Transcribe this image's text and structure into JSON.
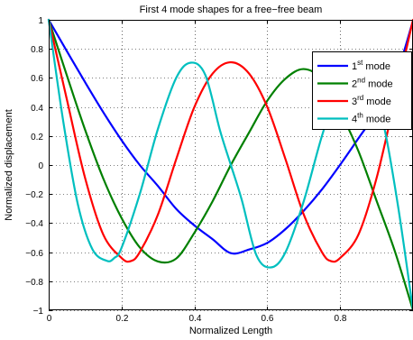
{
  "chart_data": {
    "type": "line",
    "title": "First 4 mode shapes for a free−free beam",
    "xlabel": "Normalized Length",
    "ylabel": "Normalized displacement",
    "xlim": [
      0,
      1
    ],
    "ylim": [
      -1,
      1
    ],
    "grid": true,
    "legend_position": "top-right",
    "x_ticks": [
      0,
      0.2,
      0.4,
      0.6,
      0.8
    ],
    "x_tick_labels": [
      "0",
      "0.2",
      "0.4",
      "0.6",
      "0.8"
    ],
    "y_ticks": [
      -1,
      -0.8,
      -0.6,
      -0.4,
      -0.2,
      0,
      0.2,
      0.4,
      0.6,
      0.8,
      1
    ],
    "y_tick_labels": [
      "−1",
      "−0.8",
      "−0.6",
      "−0.4",
      "−0.2",
      "0",
      "0.2",
      "0.4",
      "0.6",
      "0.8",
      "1"
    ],
    "series": [
      {
        "name": "1st mode",
        "legend_main": "1",
        "legend_sup": "st",
        "legend_tail": " mode",
        "color": "#0000ff",
        "x": [
          0,
          0.05,
          0.1,
          0.15,
          0.2,
          0.25,
          0.3,
          0.35,
          0.4,
          0.45,
          0.5,
          0.55,
          0.6,
          0.65,
          0.7,
          0.75,
          0.8,
          0.85,
          0.9,
          0.95,
          1
        ],
        "y": [
          1,
          0.784,
          0.57,
          0.363,
          0.171,
          0,
          -0.145,
          -0.302,
          -0.416,
          -0.511,
          -0.607,
          -0.582,
          -0.536,
          -0.441,
          -0.315,
          -0.168,
          0.002,
          0.183,
          0.366,
          0.589,
          0.993
        ]
      },
      {
        "name": "2nd mode",
        "legend_main": "2",
        "legend_sup": "nd",
        "legend_tail": " mode",
        "color": "#008000",
        "x": [
          0,
          0.05,
          0.1,
          0.15,
          0.2,
          0.25,
          0.3,
          0.35,
          0.4,
          0.45,
          0.5,
          0.55,
          0.6,
          0.65,
          0.7,
          0.75,
          0.8,
          0.85,
          0.9,
          0.95,
          1
        ],
        "y": [
          1,
          0.616,
          0.242,
          -0.094,
          -0.365,
          -0.567,
          -0.664,
          -0.644,
          -0.466,
          -0.249,
          0,
          0.224,
          0.443,
          0.595,
          0.661,
          0.589,
          0.368,
          0.097,
          -0.246,
          -0.592,
          -1
        ]
      },
      {
        "name": "3rd mode",
        "legend_main": "3",
        "legend_sup": "rd",
        "legend_tail": " mode",
        "color": "#ff0000",
        "x": [
          0,
          0.05,
          0.1,
          0.15,
          0.2,
          0.225,
          0.25,
          0.3,
          0.35,
          0.4,
          0.45,
          0.5,
          0.55,
          0.6,
          0.65,
          0.7,
          0.75,
          0.775,
          0.8,
          0.85,
          0.9,
          0.95,
          1
        ],
        "y": [
          1,
          0.45,
          -0.09,
          -0.48,
          -0.64,
          -0.662,
          -0.6,
          -0.34,
          0.04,
          0.4,
          0.63,
          0.708,
          0.63,
          0.4,
          0.04,
          -0.34,
          -0.6,
          -0.662,
          -0.64,
          -0.48,
          -0.09,
          0.45,
          1
        ]
      },
      {
        "name": "4th mode",
        "legend_main": "4",
        "legend_sup": "th",
        "legend_tail": " mode",
        "color": "#00bfbf",
        "x": [
          0,
          0.04,
          0.08,
          0.12,
          0.16,
          0.18,
          0.2,
          0.25,
          0.3,
          0.35,
          0.39,
          0.43,
          0.47,
          0.5,
          0.53,
          0.57,
          0.61,
          0.65,
          0.7,
          0.75,
          0.8,
          0.82,
          0.84,
          0.88,
          0.92,
          0.96,
          1
        ],
        "y": [
          1,
          0.3,
          -0.27,
          -0.58,
          -0.66,
          -0.64,
          -0.57,
          -0.2,
          0.25,
          0.6,
          0.705,
          0.62,
          0.24,
          0,
          -0.24,
          -0.62,
          -0.705,
          -0.6,
          -0.25,
          0.2,
          0.57,
          0.64,
          0.66,
          0.58,
          0.27,
          -0.3,
          -1
        ]
      }
    ]
  }
}
